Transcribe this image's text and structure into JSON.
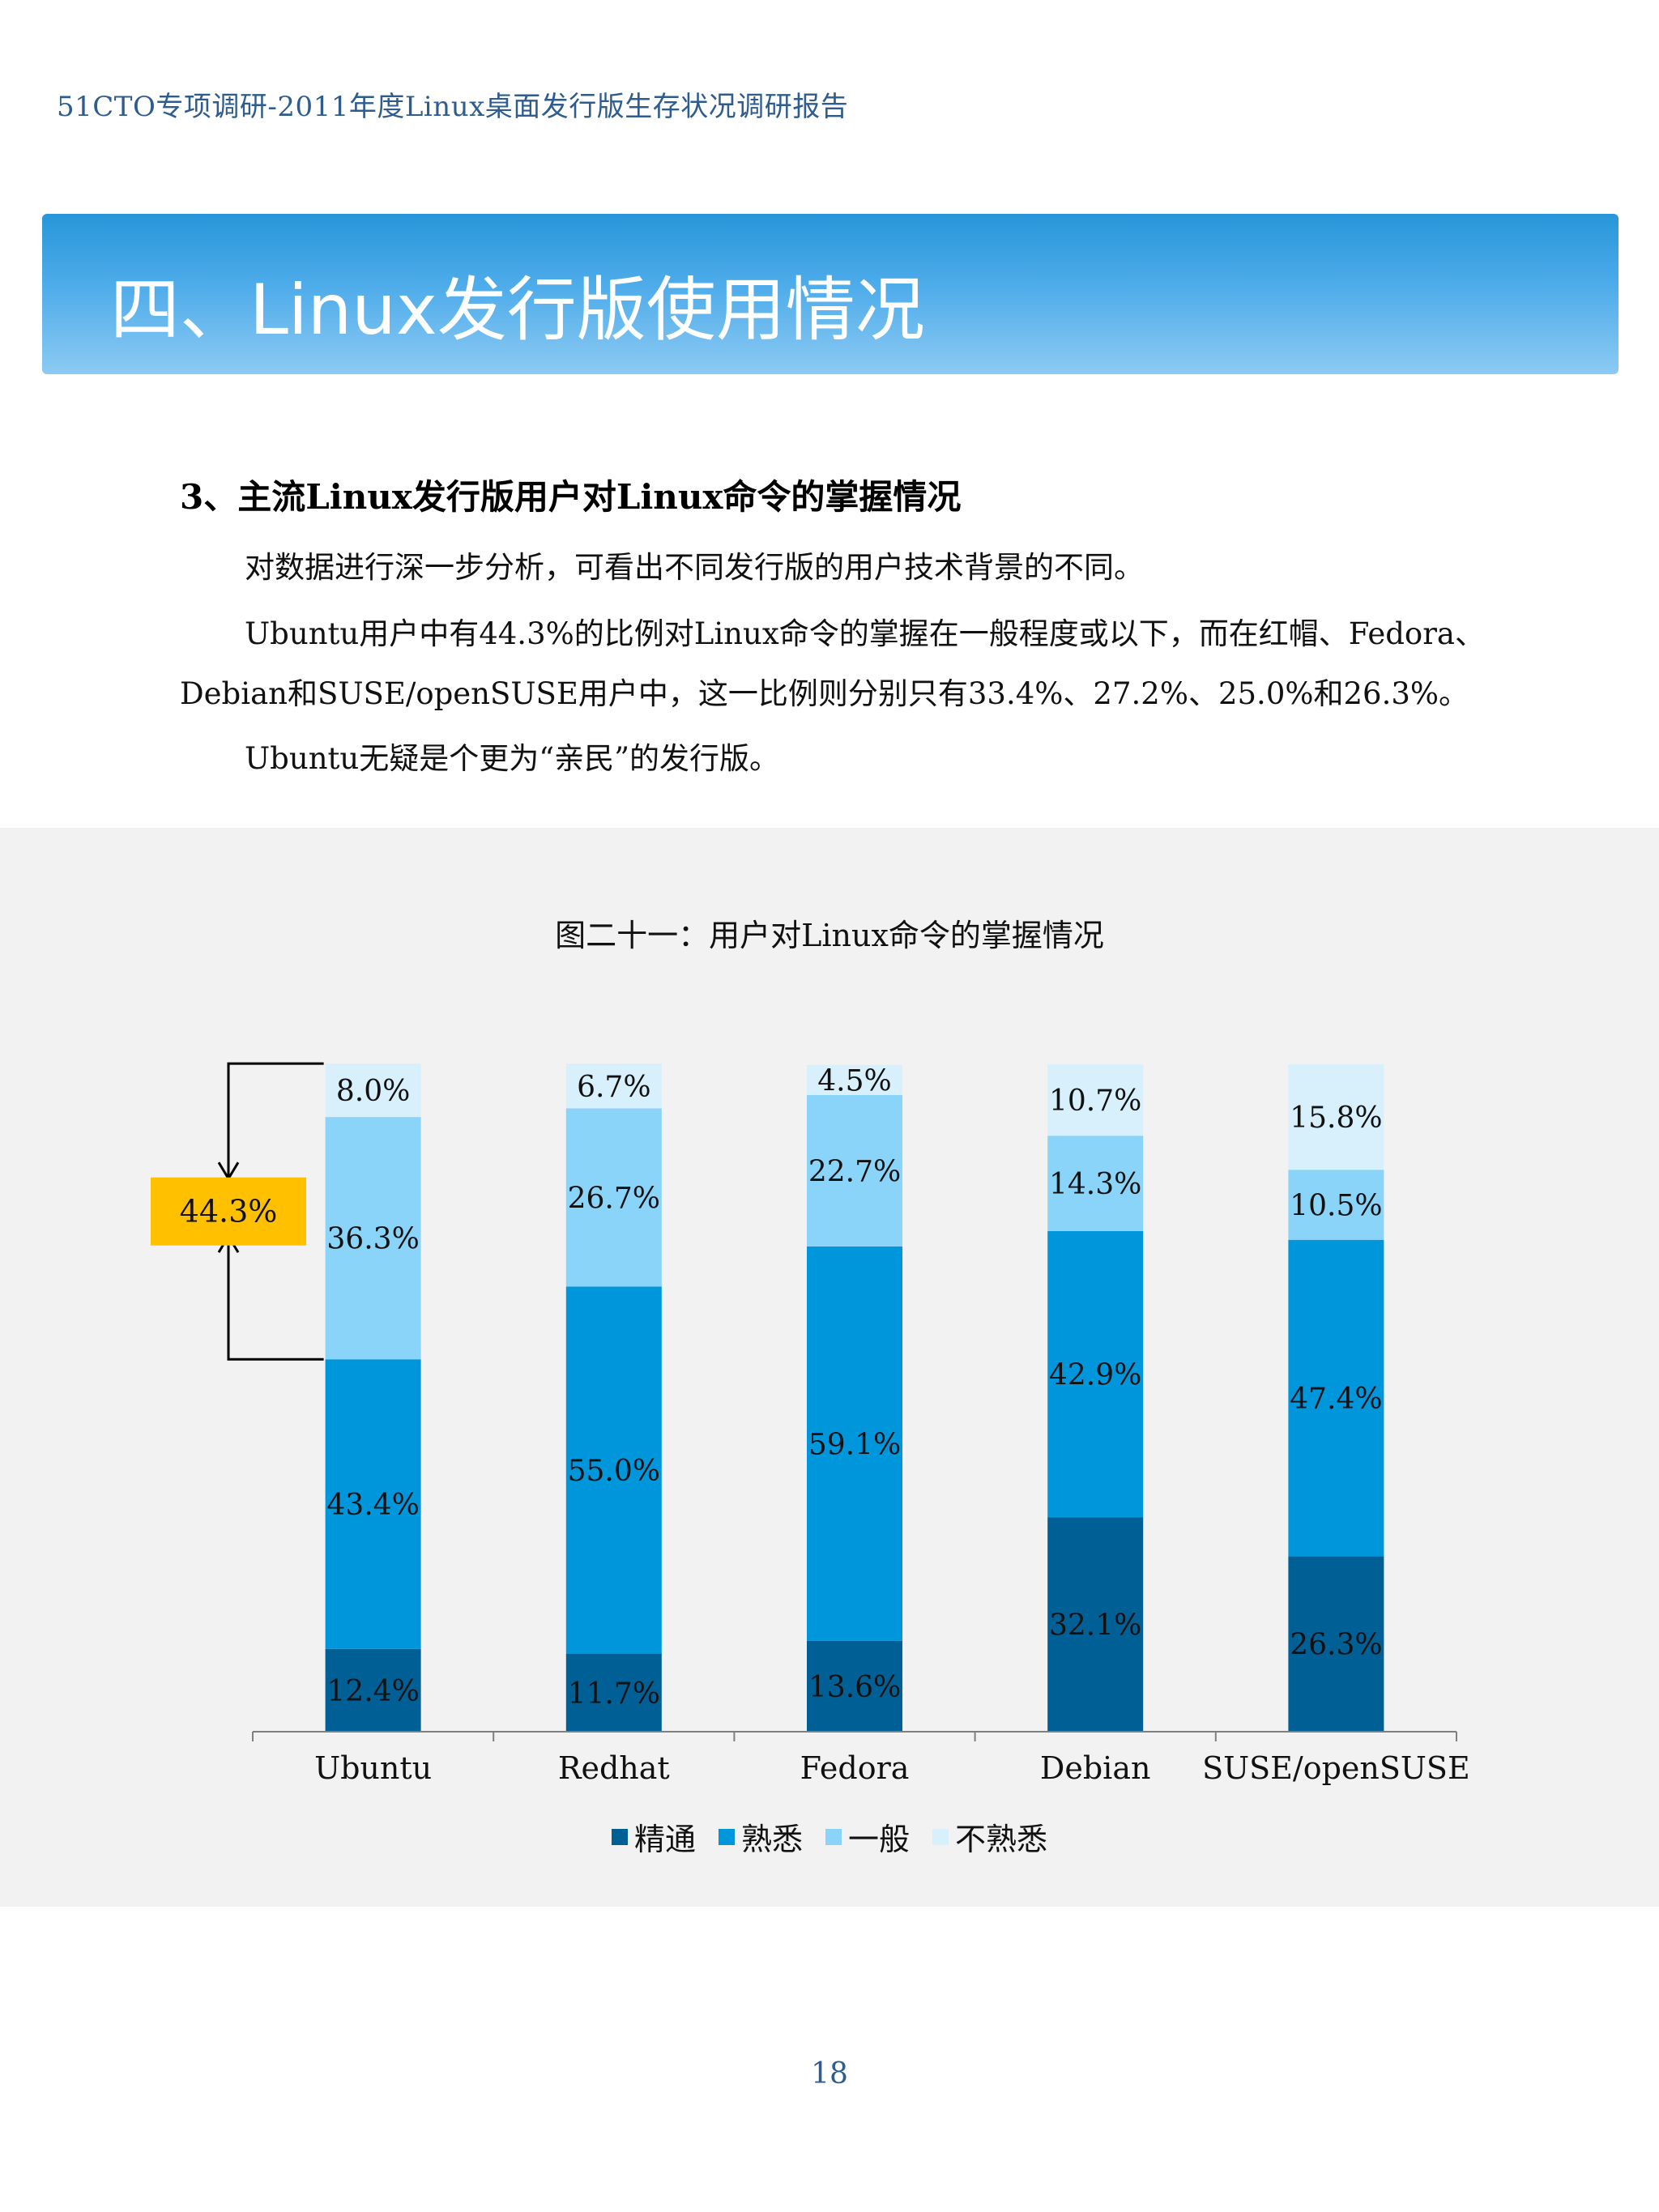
{
  "header": {
    "running_title": "51CTO专项调研-2011年度Linux桌面发行版生存状况调研报告"
  },
  "section": {
    "title": "四、Linux发行版使用情况"
  },
  "subsection": {
    "title": "3、主流Linux发行版用户对Linux命令的掌握情况"
  },
  "paragraphs": [
    "对数据进行深一步分析，可看出不同发行版的用户技术背景的不同。",
    "Ubuntu用户中有44.3%的比例对Linux命令的掌握在一般程度或以下，而在红帽、Fedora、",
    "Debian和SUSE/openSUSE用户中，这一比例则分别只有33.4%、27.2%、25.0%和26.3%。",
    "Ubuntu无疑是个更为“亲民”的发行版。"
  ],
  "chart_data": {
    "type": "bar",
    "stacked": true,
    "percent_stacked": true,
    "title": "图二十一：用户对Linux命令的掌握情况",
    "categories": [
      "Ubuntu",
      "Redhat",
      "Fedora",
      "Debian",
      "SUSE/openSUSE"
    ],
    "series": [
      {
        "name": "精通",
        "color": "#005f94",
        "values": [
          12.4,
          11.7,
          13.6,
          32.1,
          26.3
        ]
      },
      {
        "name": "熟悉",
        "color": "#0096db",
        "values": [
          43.4,
          55.0,
          59.1,
          42.9,
          47.4
        ]
      },
      {
        "name": "一般",
        "color": "#8ad3f9",
        "values": [
          36.3,
          26.7,
          22.7,
          14.3,
          10.5
        ]
      },
      {
        "name": "不熟悉",
        "color": "#d7f0fc",
        "values": [
          8.0,
          6.7,
          4.5,
          10.7,
          15.8
        ]
      }
    ],
    "data_labels": [
      [
        "12.4%",
        "11.7%",
        "13.6%",
        "32.1%",
        "26.3%"
      ],
      [
        "43.4%",
        "55.0%",
        "59.1%",
        "42.9%",
        "47.4%"
      ],
      [
        "36.3%",
        "26.7%",
        "22.7%",
        "14.3%",
        "10.5%"
      ],
      [
        "8.0%",
        "6.7%",
        "4.5%",
        "10.7%",
        "15.8%"
      ]
    ],
    "ylim": [
      0,
      100
    ],
    "legend_position": "bottom",
    "annotation": {
      "text": "44.3%",
      "category": "Ubuntu",
      "series": [
        "一般",
        "不熟悉"
      ],
      "color": "#ffc000"
    }
  },
  "footer": {
    "page_number": "18"
  }
}
